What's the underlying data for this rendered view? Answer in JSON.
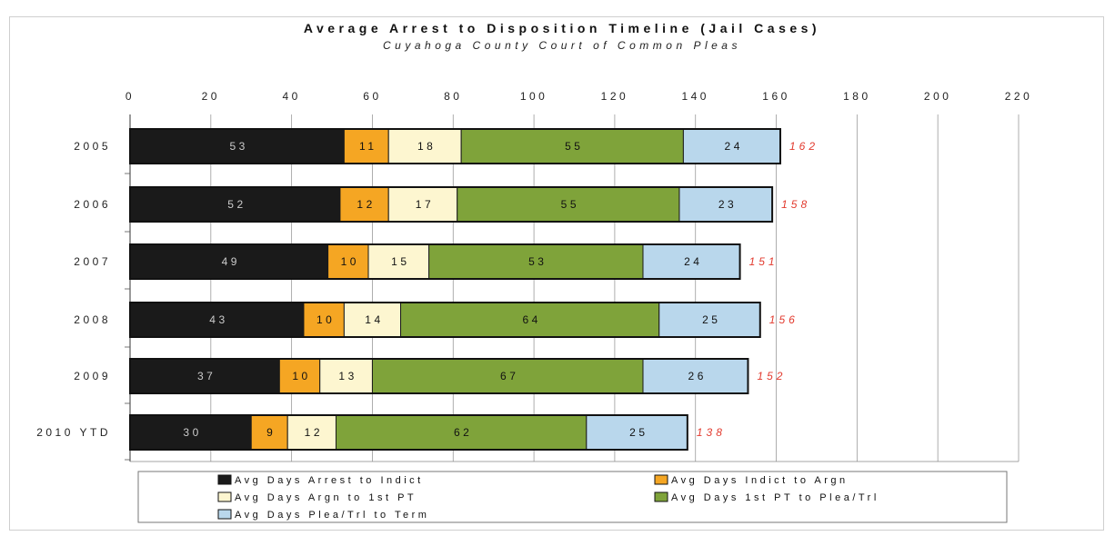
{
  "chart_data": {
    "type": "bar",
    "orientation": "horizontal",
    "stacked": true,
    "title": "Average Arrest to Disposition Timeline (Jail Cases)",
    "subtitle": "Cuyahoga County Court of Common Pleas",
    "categories": [
      "2005",
      "2006",
      "2007",
      "2008",
      "2009",
      "2010 YTD"
    ],
    "series": [
      {
        "name": "Avg Days Arrest to Indict",
        "color": "#1a1a1a",
        "label_color": "#cccccc",
        "values": [
          53,
          52,
          49,
          43,
          37,
          30
        ]
      },
      {
        "name": "Avg Days Indict to Argn",
        "color": "#f5a623",
        "label_color": "#111111",
        "values": [
          11,
          12,
          10,
          10,
          10,
          9
        ]
      },
      {
        "name": "Avg Days Argn to 1st PT",
        "color": "#fdf6d0",
        "label_color": "#111111",
        "values": [
          18,
          17,
          15,
          14,
          13,
          12
        ]
      },
      {
        "name": "Avg Days 1st PT to Plea/Trl",
        "color": "#7fa33a",
        "label_color": "#111111",
        "values": [
          55,
          55,
          53,
          64,
          67,
          62
        ]
      },
      {
        "name": "Avg Days Plea/Trl to Term",
        "color": "#b9d7ec",
        "label_color": "#111111",
        "values": [
          24,
          23,
          24,
          25,
          26,
          25
        ]
      }
    ],
    "totals": [
      162,
      158,
      151,
      156,
      152,
      138
    ],
    "xlim": [
      0,
      220
    ],
    "xticks": [
      0,
      20,
      40,
      60,
      80,
      100,
      120,
      140,
      160,
      180,
      200,
      220
    ],
    "grid": true,
    "legend_position": "bottom"
  }
}
